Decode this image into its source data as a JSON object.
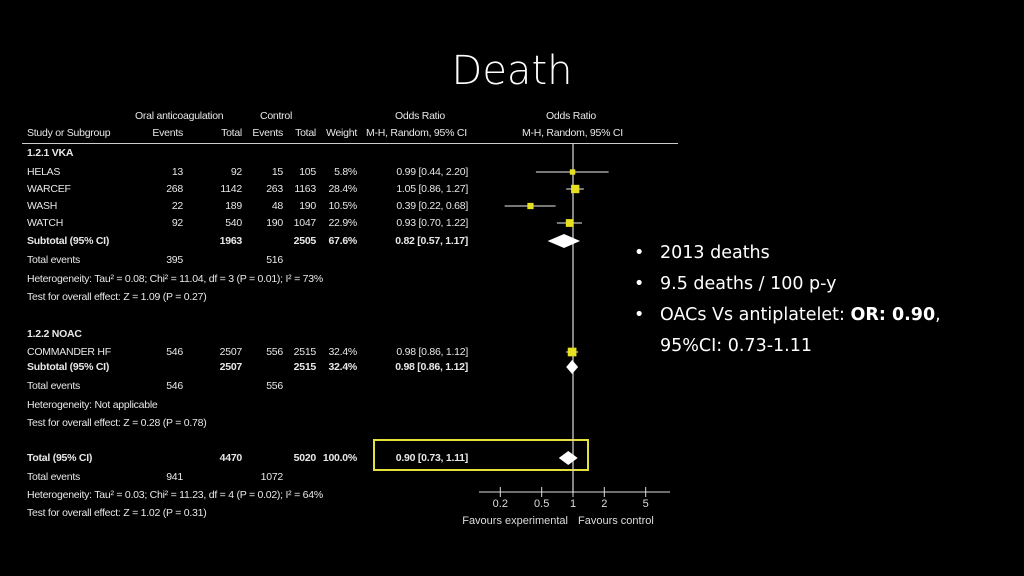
{
  "slide": {
    "title": "Death",
    "bullets": [
      {
        "text": "2013 deaths"
      },
      {
        "text": "9.5 deaths / 100 p-y"
      },
      {
        "text_before": "OACs Vs antiplatelet: ",
        "bold": "OR: 0.90",
        "text_after": ",",
        "line2": "95%CI: 0.73-1.11"
      }
    ]
  },
  "table": {
    "header": {
      "group1": "Oral anticoagulation",
      "group2": "Control",
      "or_col": "Odds Ratio",
      "or_method": "M-H, Random, 95% CI",
      "plot_col": "Odds Ratio",
      "plot_method": "M-H, Random, 95% CI",
      "study": "Study or Subgroup",
      "events1": "Events",
      "total1": "Total",
      "events2": "Events",
      "total2": "Total",
      "weight": "Weight"
    },
    "rows": [
      {
        "kind": "heading",
        "label": "1.2.1 VKA"
      },
      {
        "kind": "study",
        "label": "HELAS",
        "e1": "13",
        "n1": "92",
        "e2": "15",
        "n2": "105",
        "weight": "5.8%",
        "ci": "0.99 [0.44, 2.20]"
      },
      {
        "kind": "study",
        "label": "WARCEF",
        "e1": "268",
        "n1": "1142",
        "e2": "263",
        "n2": "1163",
        "weight": "28.4%",
        "ci": "1.05 [0.86, 1.27]"
      },
      {
        "kind": "study",
        "label": "WASH",
        "e1": "22",
        "n1": "189",
        "e2": "48",
        "n2": "190",
        "weight": "10.5%",
        "ci": "0.39 [0.22, 0.68]"
      },
      {
        "kind": "study",
        "label": "WATCH",
        "e1": "92",
        "n1": "540",
        "e2": "190",
        "n2": "1047",
        "weight": "22.9%",
        "ci": "0.93 [0.70, 1.22]"
      },
      {
        "kind": "subtotal",
        "label": "Subtotal (95% CI)",
        "n1": "1963",
        "n2": "2505",
        "weight": "67.6%",
        "ci": "0.82 [0.57, 1.17]"
      },
      {
        "kind": "events",
        "label": "Total events",
        "e1": "395",
        "e2": "516"
      },
      {
        "kind": "text",
        "label": "Heterogeneity: Tau² = 0.08; Chi² = 11.04, df = 3 (P = 0.01); I² = 73%"
      },
      {
        "kind": "text",
        "label": "Test for overall effect: Z = 1.09 (P = 0.27)"
      },
      {
        "kind": "heading",
        "label": "1.2.2 NOAC"
      },
      {
        "kind": "study",
        "label": "COMMANDER HF",
        "e1": "546",
        "n1": "2507",
        "e2": "556",
        "n2": "2515",
        "weight": "32.4%",
        "ci": "0.98 [0.86, 1.12]"
      },
      {
        "kind": "subtotal",
        "label": "Subtotal (95% CI)",
        "n1": "2507",
        "n2": "2515",
        "weight": "32.4%",
        "ci": "0.98 [0.86, 1.12]"
      },
      {
        "kind": "events",
        "label": "Total events",
        "e1": "546",
        "e2": "556"
      },
      {
        "kind": "text",
        "label": "Heterogeneity: Not applicable"
      },
      {
        "kind": "text",
        "label": "Test for overall effect: Z = 0.28 (P = 0.78)"
      },
      {
        "kind": "subtotal",
        "label": "Total (95% CI)",
        "n1": "4470",
        "n2": "5020",
        "weight": "100.0%",
        "ci": "0.90 [0.73, 1.11]",
        "highlighted": true
      },
      {
        "kind": "events",
        "label": "Total events",
        "e1": "941",
        "e2": "1072"
      },
      {
        "kind": "text",
        "label": "Heterogeneity: Tau² = 0.03; Chi² = 11.23, df = 4 (P = 0.02); I² = 64%"
      },
      {
        "kind": "text",
        "label": "Test for overall effect: Z = 1.02 (P = 0.31)"
      }
    ]
  },
  "chart_data": {
    "type": "forest",
    "x_scale": "log",
    "xticks": [
      0.2,
      0.5,
      1,
      2,
      5
    ],
    "xtick_labels": [
      "0.2",
      "0.5",
      "1",
      "2",
      "5"
    ],
    "xlabel_left": "Favours experimental",
    "xlabel_right": "Favours control",
    "reference_line": 1,
    "studies": [
      {
        "name": "HELAS",
        "or": 0.99,
        "lo": 0.44,
        "hi": 2.2,
        "weight": 5.8
      },
      {
        "name": "WARCEF",
        "or": 1.05,
        "lo": 0.86,
        "hi": 1.27,
        "weight": 28.4
      },
      {
        "name": "WASH",
        "or": 0.39,
        "lo": 0.22,
        "hi": 0.68,
        "weight": 10.5
      },
      {
        "name": "WATCH",
        "or": 0.93,
        "lo": 0.7,
        "hi": 1.22,
        "weight": 22.9
      },
      {
        "name": "COMMANDER HF",
        "or": 0.98,
        "lo": 0.86,
        "hi": 1.12,
        "weight": 32.4
      }
    ],
    "pooled": [
      {
        "name": "Subtotal VKA",
        "or": 0.82,
        "lo": 0.57,
        "hi": 1.17
      },
      {
        "name": "Subtotal NOAC",
        "or": 0.98,
        "lo": 0.86,
        "hi": 1.12
      },
      {
        "name": "Total",
        "or": 0.9,
        "lo": 0.73,
        "hi": 1.11
      }
    ],
    "colors": {
      "study_marker": "#e6e020",
      "pooled_diamond": "#ffffff",
      "highlight_box": "#e6e03a",
      "background": "#000000"
    }
  }
}
